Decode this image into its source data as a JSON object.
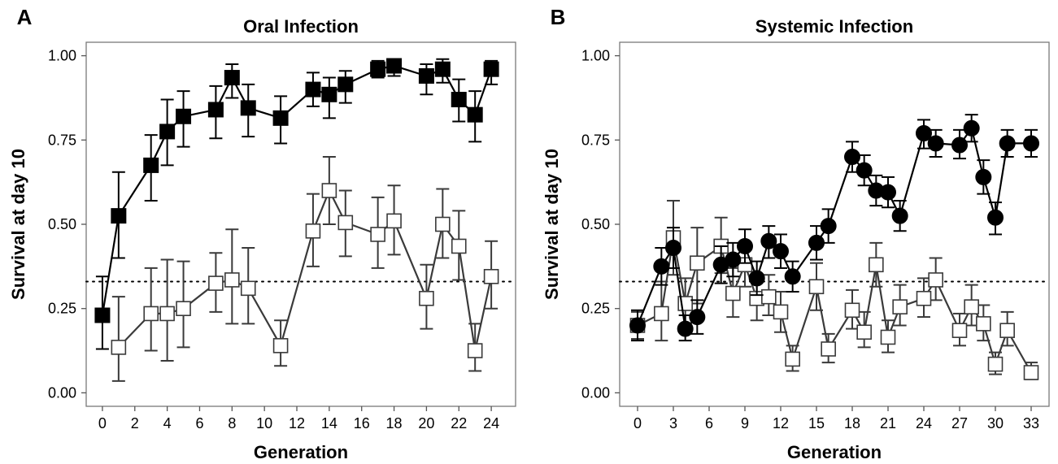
{
  "chart_data": [
    {
      "type": "line",
      "panel_label": "A",
      "title": "Oral Infection",
      "xlabel": "Generation",
      "ylabel": "Survival at day 10",
      "xlim": [
        -1,
        25.5
      ],
      "ylim": [
        -0.04,
        1.04
      ],
      "xticks": [
        0,
        2,
        4,
        6,
        8,
        10,
        12,
        14,
        16,
        18,
        20,
        22,
        24
      ],
      "yticks": [
        0.0,
        0.25,
        0.5,
        0.75,
        1.0
      ],
      "ytick_labels": [
        "0.00",
        "0.25",
        "0.50",
        "0.75",
        "1.00"
      ],
      "reference_line": 0.33,
      "grid": false,
      "legend": "none",
      "series": [
        {
          "marker": "filled-square",
          "color": "#000000",
          "x": [
            0,
            1,
            3,
            4,
            5,
            7,
            8,
            9,
            11,
            13,
            14,
            15,
            17,
            18,
            20,
            21,
            22,
            23,
            24
          ],
          "y": [
            0.23,
            0.525,
            0.675,
            0.775,
            0.82,
            0.84,
            0.935,
            0.845,
            0.815,
            0.9,
            0.885,
            0.915,
            0.96,
            0.97,
            0.94,
            0.96,
            0.87,
            0.825,
            0.96
          ],
          "ylow": [
            0.13,
            0.4,
            0.57,
            0.675,
            0.73,
            0.755,
            0.875,
            0.76,
            0.74,
            0.85,
            0.815,
            0.86,
            0.935,
            0.94,
            0.885,
            0.92,
            0.805,
            0.745,
            0.915
          ],
          "yhigh": [
            0.345,
            0.655,
            0.765,
            0.87,
            0.895,
            0.91,
            0.975,
            0.915,
            0.88,
            0.95,
            0.935,
            0.955,
            0.985,
            0.99,
            0.975,
            0.99,
            0.93,
            0.895,
            0.985
          ]
        },
        {
          "marker": "open-square",
          "color": "#3a3a3a",
          "x": [
            1,
            3,
            4,
            5,
            7,
            8,
            9,
            11,
            13,
            14,
            15,
            17,
            18,
            20,
            21,
            22,
            23,
            24
          ],
          "y": [
            0.135,
            0.235,
            0.235,
            0.25,
            0.325,
            0.335,
            0.31,
            0.14,
            0.48,
            0.6,
            0.505,
            0.47,
            0.51,
            0.28,
            0.5,
            0.435,
            0.125,
            0.345
          ],
          "ylow": [
            0.035,
            0.125,
            0.095,
            0.135,
            0.24,
            0.205,
            0.205,
            0.08,
            0.375,
            0.5,
            0.405,
            0.37,
            0.41,
            0.19,
            0.4,
            0.335,
            0.065,
            0.25
          ],
          "yhigh": [
            0.285,
            0.37,
            0.395,
            0.39,
            0.415,
            0.485,
            0.43,
            0.215,
            0.59,
            0.7,
            0.6,
            0.58,
            0.615,
            0.38,
            0.605,
            0.54,
            0.205,
            0.45
          ]
        }
      ]
    },
    {
      "type": "line",
      "panel_label": "B",
      "title": "Systemic Infection",
      "xlabel": "Generation",
      "ylabel": "Survival at day 10",
      "xlim": [
        -1.5,
        34.5
      ],
      "ylim": [
        -0.04,
        1.04
      ],
      "xticks": [
        0,
        3,
        6,
        9,
        12,
        15,
        18,
        21,
        24,
        27,
        30,
        33
      ],
      "yticks": [
        0.0,
        0.25,
        0.5,
        0.75,
        1.0
      ],
      "ytick_labels": [
        "0.00",
        "0.25",
        "0.50",
        "0.75",
        "1.00"
      ],
      "reference_line": 0.33,
      "grid": false,
      "legend": "none",
      "series": [
        {
          "marker": "filled-circle",
          "color": "#000000",
          "x": [
            0,
            2,
            3,
            4,
            5,
            7,
            8,
            9,
            10,
            11,
            12,
            13,
            15,
            16,
            18,
            19,
            20,
            21,
            22,
            24,
            25,
            27,
            28,
            29,
            30,
            31,
            33
          ],
          "y": [
            0.2,
            0.375,
            0.43,
            0.19,
            0.225,
            0.38,
            0.395,
            0.435,
            0.34,
            0.45,
            0.42,
            0.345,
            0.445,
            0.495,
            0.7,
            0.66,
            0.6,
            0.595,
            0.525,
            0.77,
            0.74,
            0.735,
            0.785,
            0.64,
            0.52,
            0.74,
            0.74
          ],
          "ylow": [
            0.155,
            0.32,
            0.37,
            0.155,
            0.175,
            0.325,
            0.345,
            0.385,
            0.29,
            0.4,
            0.37,
            0.3,
            0.395,
            0.445,
            0.655,
            0.615,
            0.555,
            0.55,
            0.48,
            0.725,
            0.7,
            0.695,
            0.745,
            0.59,
            0.47,
            0.7,
            0.7
          ],
          "yhigh": [
            0.245,
            0.43,
            0.49,
            0.23,
            0.275,
            0.435,
            0.445,
            0.485,
            0.39,
            0.495,
            0.47,
            0.39,
            0.495,
            0.545,
            0.745,
            0.705,
            0.645,
            0.64,
            0.57,
            0.81,
            0.78,
            0.78,
            0.825,
            0.69,
            0.565,
            0.78,
            0.78
          ]
        },
        {
          "marker": "open-square",
          "color": "#3a3a3a",
          "x": [
            0,
            2,
            3,
            4,
            5,
            7,
            8,
            9,
            10,
            11,
            12,
            13,
            15,
            16,
            18,
            19,
            20,
            21,
            22,
            24,
            25,
            27,
            28,
            29,
            30,
            31,
            33
          ],
          "y": [
            0.2,
            0.235,
            0.46,
            0.265,
            0.385,
            0.435,
            0.295,
            0.38,
            0.28,
            0.285,
            0.24,
            0.1,
            0.315,
            0.13,
            0.245,
            0.18,
            0.38,
            0.165,
            0.255,
            0.28,
            0.335,
            0.185,
            0.255,
            0.205,
            0.085,
            0.185,
            0.06
          ],
          "ylow": [
            0.16,
            0.155,
            0.35,
            0.2,
            0.265,
            0.355,
            0.225,
            0.315,
            0.215,
            0.23,
            0.18,
            0.065,
            0.245,
            0.09,
            0.19,
            0.135,
            0.315,
            0.12,
            0.2,
            0.225,
            0.275,
            0.14,
            0.2,
            0.155,
            0.055,
            0.14,
            0.04
          ],
          "yhigh": [
            0.24,
            0.33,
            0.57,
            0.34,
            0.49,
            0.52,
            0.37,
            0.44,
            0.345,
            0.35,
            0.3,
            0.14,
            0.385,
            0.175,
            0.305,
            0.24,
            0.445,
            0.215,
            0.32,
            0.34,
            0.4,
            0.235,
            0.32,
            0.26,
            0.12,
            0.24,
            0.09
          ]
        }
      ]
    }
  ]
}
